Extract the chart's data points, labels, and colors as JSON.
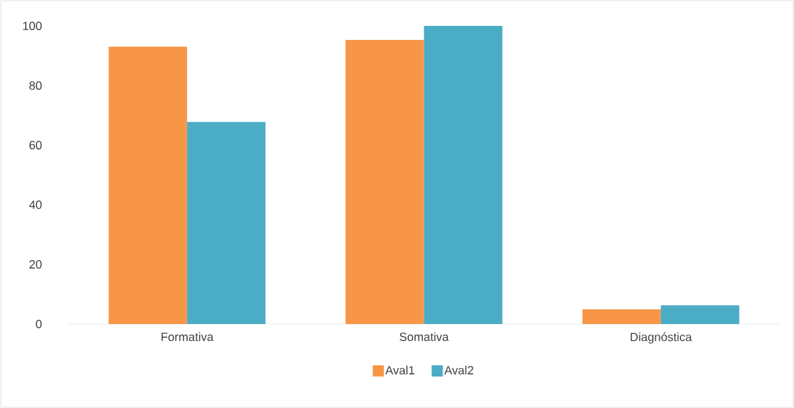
{
  "chart_data": {
    "type": "bar",
    "categories": [
      "Formativa",
      "Somativa",
      "Diagnóstica"
    ],
    "series": [
      {
        "name": "Aval1",
        "color": "#f79646",
        "values": [
          93,
          95.3,
          4.9
        ]
      },
      {
        "name": "Aval2",
        "color": "#4bacc6",
        "values": [
          67.8,
          100,
          6.3
        ]
      }
    ],
    "ylim": [
      0,
      100
    ],
    "yticks": [
      0,
      20,
      40,
      60,
      80,
      100
    ],
    "grid": false,
    "legend": "bottom"
  }
}
